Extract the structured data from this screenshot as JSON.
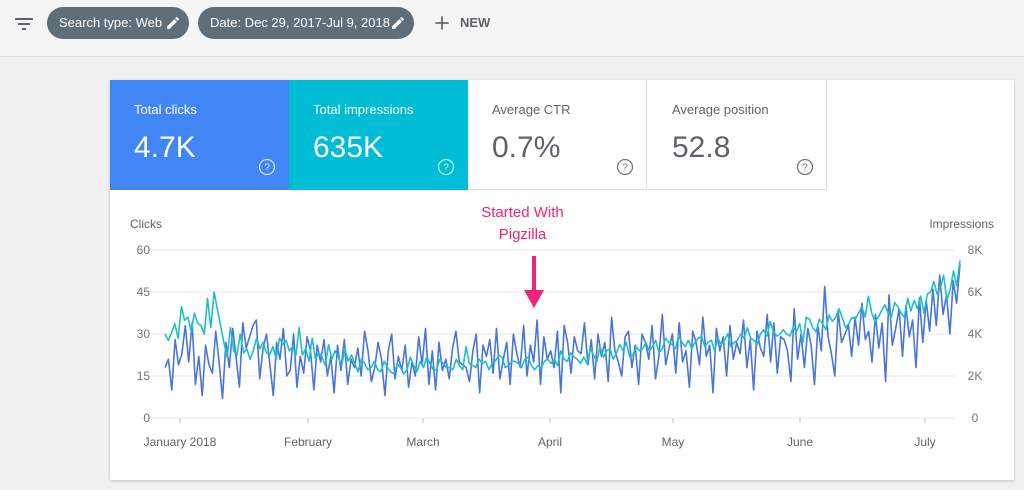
{
  "toolbar": {
    "filter_icon": "filter-list-icon",
    "chips": [
      {
        "label": "Search type: Web",
        "icon": "edit-pencil-icon"
      },
      {
        "label": "Date: Dec 29, 2017-Jul 9, 2018",
        "icon": "edit-pencil-icon"
      }
    ],
    "new_label": "NEW",
    "new_icon": "plus-icon"
  },
  "tiles": [
    {
      "label": "Total clicks",
      "value": "4.7K",
      "selected": true,
      "color": "#4285f4"
    },
    {
      "label": "Total impressions",
      "value": "635K",
      "selected": true,
      "color": "#00bcd4"
    },
    {
      "label": "Average CTR",
      "value": "0.7%",
      "selected": false,
      "color": "#ffffff"
    },
    {
      "label": "Average position",
      "value": "52.8",
      "selected": false,
      "color": "#ffffff"
    }
  ],
  "annotation": {
    "line1": "Started With",
    "line2": "Pigzilla",
    "color": "#f0237b"
  },
  "chart_data": {
    "type": "line",
    "left_axis_label": "Clicks",
    "right_axis_label": "Impressions",
    "left_ticks": [
      "0",
      "15",
      "30",
      "45",
      "60"
    ],
    "right_ticks": [
      "0",
      "2K",
      "4K",
      "6K",
      "8K"
    ],
    "ylim_left": [
      0,
      60
    ],
    "ylim_right": [
      0,
      8000
    ],
    "x_labels": [
      "January 2018",
      "February",
      "March",
      "April",
      "May",
      "June",
      "July"
    ],
    "grid": true,
    "series": [
      {
        "name": "Clicks",
        "axis": "left",
        "color": "#4a76d8",
        "values": [
          18,
          21,
          10,
          28,
          19,
          23,
          33,
          20,
          34,
          12,
          22,
          8,
          26,
          19,
          16,
          31,
          20,
          7,
          27,
          18,
          32,
          22,
          11,
          34,
          25,
          29,
          33,
          35,
          14,
          25,
          30,
          19,
          8,
          27,
          21,
          32,
          15,
          17,
          30,
          11,
          22,
          16,
          29,
          24,
          10,
          26,
          20,
          28,
          15,
          22,
          9,
          26,
          17,
          28,
          12,
          21,
          18,
          25,
          15,
          31,
          24,
          13,
          18,
          27,
          21,
          8,
          24,
          30,
          14,
          22,
          17,
          26,
          11,
          20,
          15,
          29,
          19,
          32,
          12,
          24,
          10,
          27,
          17,
          21,
          14,
          25,
          31,
          20,
          19,
          18,
          13,
          24,
          30,
          9,
          26,
          22,
          28,
          16,
          32,
          14,
          21,
          27,
          12,
          30,
          23,
          18,
          33,
          15,
          26,
          20,
          35,
          12,
          29,
          21,
          24,
          18,
          31,
          9,
          33,
          27,
          16,
          29,
          24,
          23,
          34,
          19,
          28,
          14,
          30,
          22,
          27,
          13,
          36,
          24,
          20,
          15,
          29,
          31,
          18,
          26,
          12,
          30,
          27,
          21,
          33,
          14,
          22,
          37,
          19,
          25,
          30,
          16,
          34,
          20,
          24,
          11,
          31,
          27,
          19,
          36,
          22,
          26,
          9,
          32,
          24,
          29,
          15,
          33,
          21,
          27,
          23,
          35,
          18,
          28,
          10,
          31,
          25,
          22,
          37,
          20,
          34,
          16,
          29,
          28,
          24,
          13,
          39,
          21,
          30,
          18,
          32,
          26,
          12,
          33,
          24,
          47,
          29,
          23,
          15,
          38,
          27,
          30,
          33,
          22,
          36,
          26,
          41,
          28,
          31,
          20,
          37,
          25,
          34,
          13,
          44,
          26,
          32,
          39,
          22,
          40,
          29,
          35,
          18,
          43,
          27,
          42,
          31,
          46,
          33,
          51,
          37,
          44,
          30,
          49,
          41,
          55
        ]
      },
      {
        "name": "Impressions",
        "axis": "right",
        "color": "#1fbfc8",
        "values": [
          4000,
          3700,
          4050,
          4500,
          3800,
          5300,
          4650,
          4800,
          4100,
          5000,
          4500,
          4400,
          4000,
          5700,
          4300,
          6000,
          5200,
          4400,
          3600,
          2900,
          4300,
          3200,
          3000,
          4000,
          3100,
          3300,
          2800,
          3200,
          3800,
          3300,
          3600,
          3100,
          3000,
          3400,
          2800,
          3800,
          3500,
          3700,
          3200,
          3400,
          3000,
          4300,
          3000,
          3300,
          2700,
          3800,
          2800,
          3100,
          2900,
          2500,
          3500,
          2800,
          3200,
          2900,
          2500,
          3300,
          2700,
          3000,
          2600,
          2200,
          2800,
          2600,
          2300,
          2400,
          2700,
          2300,
          2200,
          2700,
          2400,
          2200,
          2100,
          2600,
          2400,
          2100,
          2300,
          2900,
          2500,
          2200,
          2700,
          2400,
          2900,
          2600,
          2300,
          2300,
          2800,
          2600,
          2400,
          2400,
          2300,
          2800,
          2500,
          2300,
          3400,
          2600,
          2500,
          2400,
          2800,
          2600,
          2700,
          2300,
          2600,
          2700,
          3000,
          2900,
          2400,
          2500,
          2700,
          2700,
          2600,
          2400,
          2800,
          2900,
          2500,
          2300,
          2500,
          2400,
          2700,
          2800,
          2600,
          2800,
          2500,
          3200,
          2800,
          2700,
          3100,
          2900,
          2800,
          2600,
          2900,
          2600,
          3300,
          3000,
          2700,
          3400,
          2900,
          3200,
          3300,
          2800,
          3100,
          3500,
          3200,
          3600,
          2900,
          3000,
          3400,
          3200,
          3300,
          3600,
          3200,
          3400,
          3700,
          3100,
          3300,
          3800,
          3600,
          3500,
          3300,
          3900,
          3600,
          3400,
          3700,
          3300,
          3600,
          3800,
          3900,
          3400,
          3600,
          3700,
          3200,
          3800,
          3500,
          3700,
          4000,
          3400,
          3600,
          3700,
          4000,
          3800,
          4300,
          3800,
          3700,
          3500,
          4000,
          4200,
          3900,
          4600,
          4100,
          3900,
          4000,
          4200,
          4000,
          3900,
          4300,
          4100,
          4500,
          3600,
          4800,
          4700,
          4300,
          4100,
          4700,
          4500,
          4200,
          4900,
          4600,
          4800,
          5200,
          4800,
          4300,
          4500,
          4800,
          4700,
          5000,
          5300,
          4800,
          5800,
          5000,
          4600,
          4800,
          5100,
          5400,
          5000,
          4800,
          5500,
          5300,
          5000,
          4800,
          5700,
          5100,
          5600,
          5200,
          5800,
          5000,
          5900,
          6000,
          6500,
          5900,
          6200,
          6800,
          5600,
          6100,
          7000,
          6300,
          7500
        ]
      }
    ]
  }
}
